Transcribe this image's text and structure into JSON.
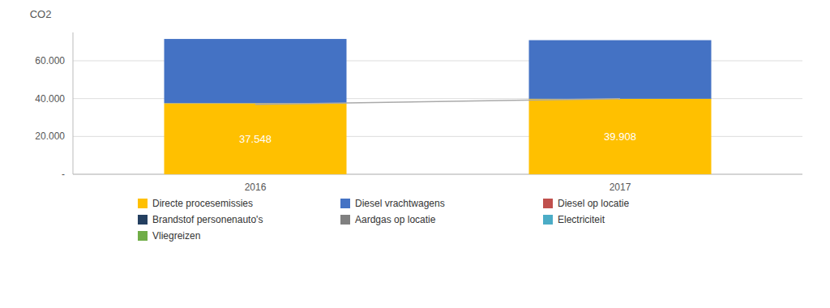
{
  "chart_data": {
    "type": "bar",
    "stacked": true,
    "grid": true,
    "legend": "bottom",
    "ylabel": "CO2",
    "categories": [
      "2016",
      "2017"
    ],
    "ylim": [
      0,
      75000
    ],
    "yticks": [
      {
        "value": 0,
        "label": "-"
      },
      {
        "value": 20000,
        "label": "20.000"
      },
      {
        "value": 40000,
        "label": "40.000"
      },
      {
        "value": 60000,
        "label": "60.000"
      }
    ],
    "series": [
      {
        "name": "Directe procesemissies",
        "color": "#FFC000",
        "values": [
          37548,
          39908
        ],
        "data_labels": true,
        "value_labels": [
          "37.548",
          "39.908"
        ]
      },
      {
        "name": "Diesel vrachtwagens",
        "color": "#4472C4",
        "values": [
          34000,
          31000
        ]
      },
      {
        "type": "line",
        "color": "#AAAAAA",
        "values": [
          37000,
          40000
        ]
      },
      {
        "name": "Diesel op locatie",
        "color": "#C0504D",
        "values": [
          null,
          null
        ]
      },
      {
        "name": "Brandstof personenauto's",
        "color": "#243F60",
        "values": [
          null,
          null
        ]
      },
      {
        "name": "Aardgas op locatie",
        "color": "#808080",
        "values": [
          null,
          null
        ]
      },
      {
        "name": "Electriciteit",
        "color": "#4BACC6",
        "values": [
          null,
          null
        ]
      },
      {
        "name": "Vliegreizen",
        "color": "#70AD47",
        "values": [
          null,
          null
        ]
      }
    ]
  }
}
